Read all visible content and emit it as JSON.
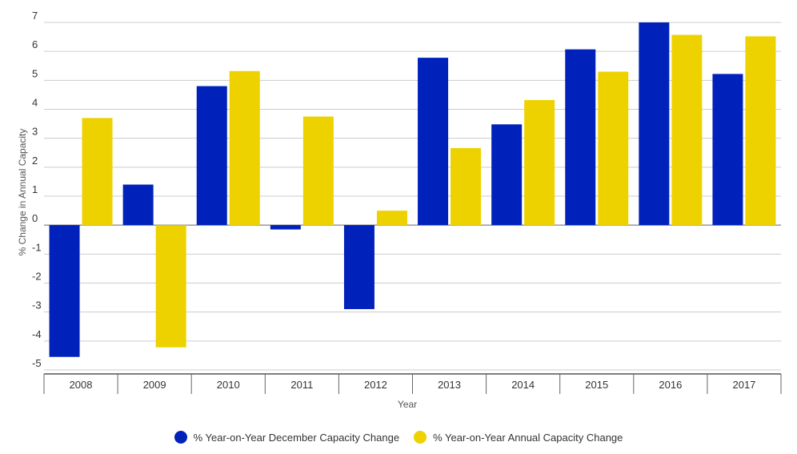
{
  "chart_data": {
    "type": "bar",
    "categories": [
      "2008",
      "2009",
      "2010",
      "2011",
      "2012",
      "2013",
      "2014",
      "2015",
      "2016",
      "2017"
    ],
    "series": [
      {
        "name": "% Year-on-Year December Capacity Change",
        "color": "#0022bb",
        "values": [
          -4.55,
          1.4,
          4.8,
          -0.15,
          -2.9,
          5.78,
          3.48,
          6.07,
          7.0,
          5.22
        ]
      },
      {
        "name": "% Year-on-Year Annual Capacity Change",
        "color": "#eed200",
        "values": [
          3.7,
          -4.22,
          5.32,
          3.75,
          0.5,
          2.66,
          4.32,
          5.3,
          6.57,
          6.52
        ]
      }
    ],
    "xlabel": "Year",
    "ylabel": "% Change in Annual Capacity",
    "ylim": [
      -5,
      7
    ],
    "yticks": [
      -5,
      -4,
      -3,
      -2,
      -1,
      0,
      1,
      2,
      3,
      4,
      5,
      6,
      7
    ],
    "grid": true,
    "legend_position": "bottom"
  }
}
